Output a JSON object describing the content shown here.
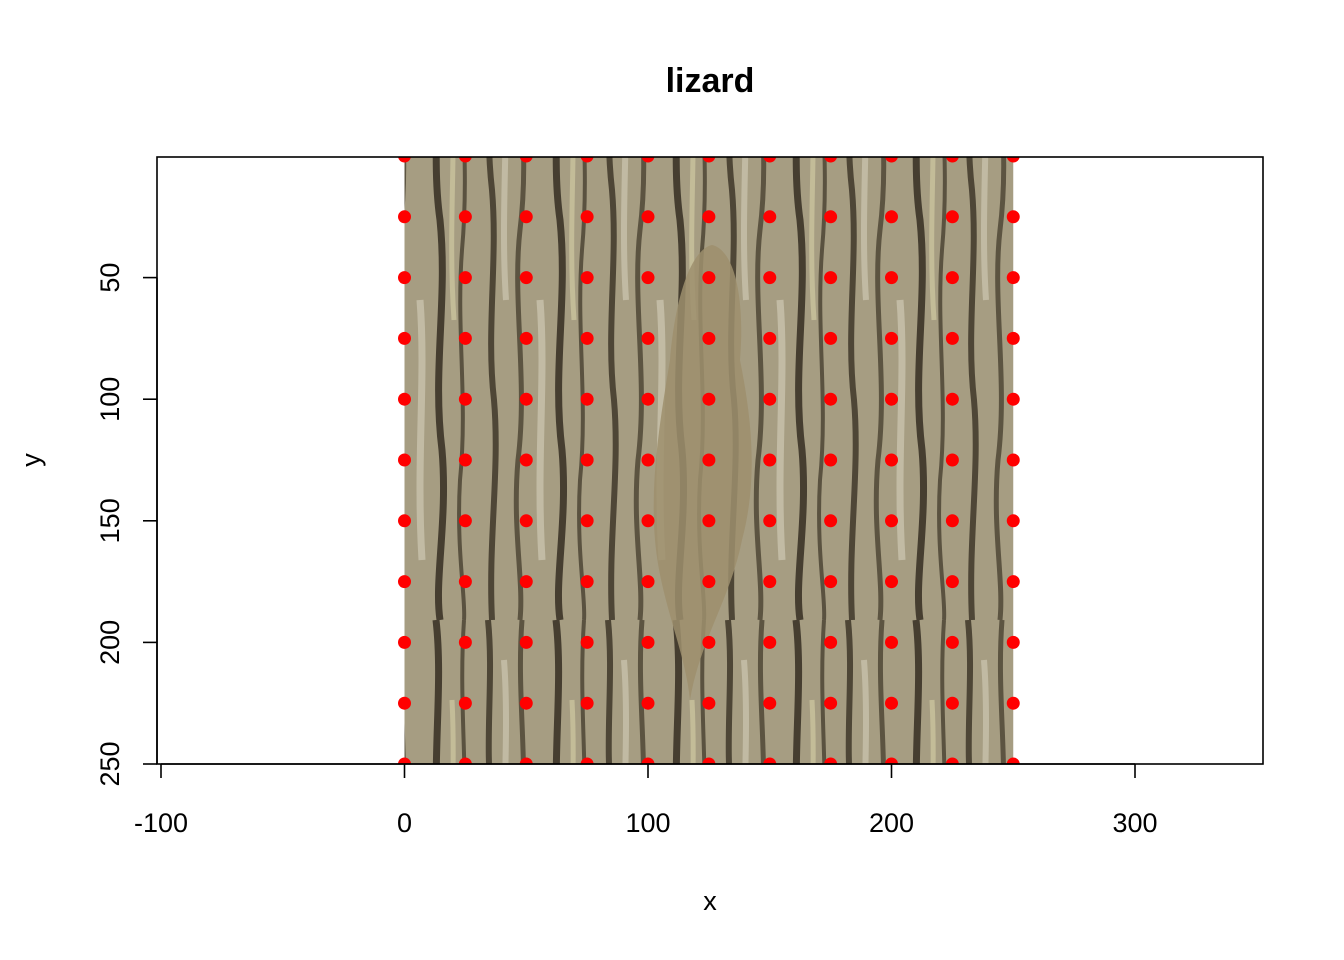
{
  "chart_data": {
    "type": "scatter",
    "title": "lizard",
    "xlabel": "x",
    "ylabel": "y",
    "xlim": [
      -100,
      350
    ],
    "ylim": [
      250,
      0
    ],
    "y_axis_inverted": true,
    "x_ticks": [
      "-100",
      "0",
      "100",
      "200",
      "300"
    ],
    "x_tick_values": [
      -100,
      0,
      100,
      200,
      300
    ],
    "y_ticks": [
      "50",
      "100",
      "150",
      "200",
      "250"
    ],
    "y_tick_values": [
      50,
      100,
      150,
      200,
      250
    ],
    "background_image": {
      "description": "tree bark with camouflaged lizard",
      "x_extent": [
        0,
        250
      ],
      "y_extent": [
        0,
        250
      ]
    },
    "points": {
      "color": "#ff0000",
      "x": [
        0,
        25,
        50,
        75,
        100,
        125,
        150,
        175,
        200,
        225,
        250
      ],
      "y": [
        0,
        25,
        50,
        75,
        100,
        125,
        150,
        175,
        200,
        225,
        250
      ],
      "layout": "grid"
    },
    "grid": false,
    "legend": "none"
  }
}
